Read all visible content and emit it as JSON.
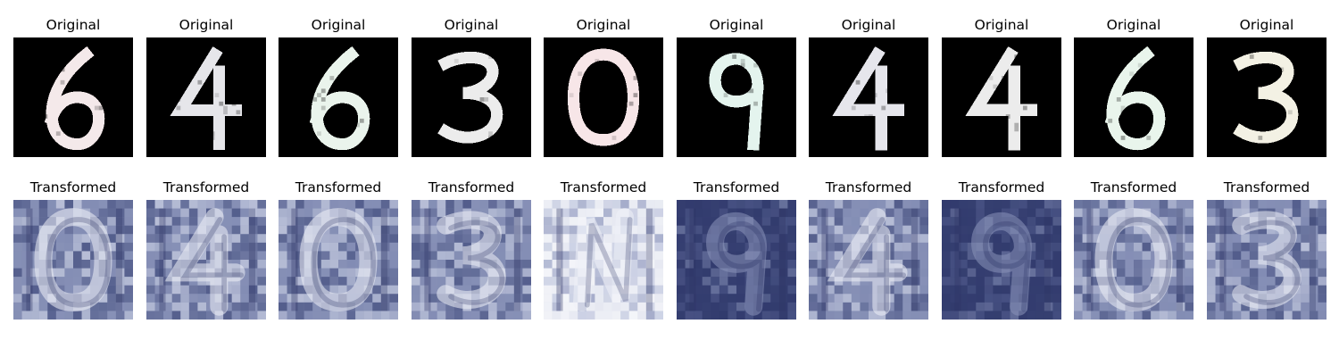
{
  "figure": {
    "rows": [
      {
        "name": "original",
        "panels": [
          {
            "title": "Original",
            "digit": "6",
            "style": "original",
            "tint": "#f4e9ea"
          },
          {
            "title": "Original",
            "digit": "4",
            "style": "original",
            "tint": "#e6e6ea"
          },
          {
            "title": "Original",
            "digit": "6",
            "style": "original",
            "tint": "#eaf4ec"
          },
          {
            "title": "Original",
            "digit": "3",
            "style": "original",
            "tint": "#ececec"
          },
          {
            "title": "Original",
            "digit": "0",
            "style": "original",
            "tint": "#f7e6e8"
          },
          {
            "title": "Original",
            "digit": "9",
            "style": "original",
            "tint": "#e4f4ee"
          },
          {
            "title": "Original",
            "digit": "4",
            "style": "original",
            "tint": "#e6e6ec"
          },
          {
            "title": "Original",
            "digit": "4",
            "style": "original",
            "tint": "#ececec"
          },
          {
            "title": "Original",
            "digit": "6",
            "style": "original",
            "tint": "#e9f5ec"
          },
          {
            "title": "Original",
            "digit": "3",
            "style": "original",
            "tint": "#f3f1e4"
          }
        ]
      },
      {
        "name": "transformed",
        "panels": [
          {
            "title": "Transformed",
            "digit": "0",
            "style": "transformed",
            "tint": "#9aa3c4"
          },
          {
            "title": "Transformed",
            "digit": "4",
            "style": "transformed",
            "tint": "#8d93b5"
          },
          {
            "title": "Transformed",
            "digit": "0",
            "style": "transformed",
            "tint": "#9aa3c4"
          },
          {
            "title": "Transformed",
            "digit": "3",
            "style": "transformed",
            "tint": "#8089ad"
          },
          {
            "title": "Transformed",
            "digit": "N",
            "style": "transformed-light",
            "tint": "#dfe3ef"
          },
          {
            "title": "Transformed",
            "digit": "9",
            "style": "transformed-dark",
            "tint": "#5b6492"
          },
          {
            "title": "Transformed",
            "digit": "4",
            "style": "transformed",
            "tint": "#8d93b5"
          },
          {
            "title": "Transformed",
            "digit": "9",
            "style": "transformed-dark",
            "tint": "#5b6492"
          },
          {
            "title": "Transformed",
            "digit": "0",
            "style": "transformed",
            "tint": "#9aa3c4"
          },
          {
            "title": "Transformed",
            "digit": "3",
            "style": "transformed",
            "tint": "#8089ad"
          }
        ]
      }
    ]
  },
  "colors": {
    "original_background": "#000000",
    "transformed_base": "#3b4576",
    "transformed_mid": "#8d96bb",
    "transformed_light": "#d8dcea"
  }
}
